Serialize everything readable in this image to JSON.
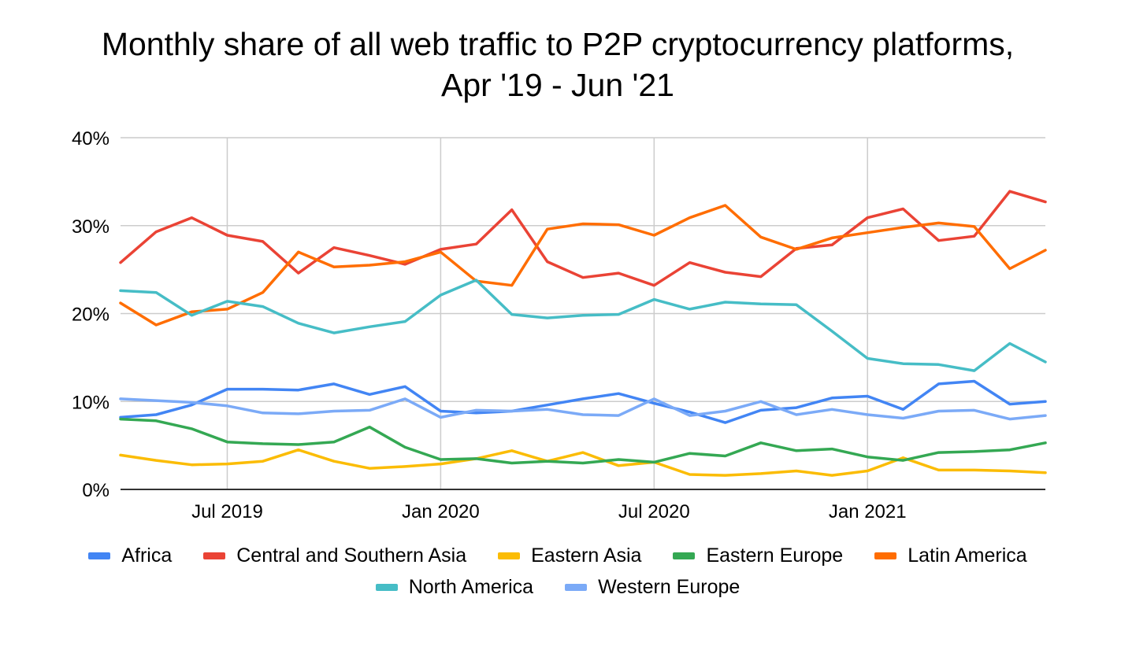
{
  "chart_data": {
    "type": "line",
    "title_line1": "Monthly share of all web traffic to P2P cryptocurrency platforms,",
    "title_line2": "Apr '19 - Jun '21",
    "xlabel": "",
    "ylabel": "",
    "ylim": [
      0,
      40
    ],
    "yticks": [
      "0%",
      "10%",
      "20%",
      "30%",
      "40%"
    ],
    "xticks": [
      {
        "index": 3,
        "label": "Jul 2019"
      },
      {
        "index": 9,
        "label": "Jan 2020"
      },
      {
        "index": 15,
        "label": "Jul 2020"
      },
      {
        "index": 21,
        "label": "Jan 2021"
      }
    ],
    "x": [
      "Apr 2019",
      "May 2019",
      "Jun 2019",
      "Jul 2019",
      "Aug 2019",
      "Sep 2019",
      "Oct 2019",
      "Nov 2019",
      "Dec 2019",
      "Jan 2020",
      "Feb 2020",
      "Mar 2020",
      "Apr 2020",
      "May 2020",
      "Jun 2020",
      "Jul 2020",
      "Aug 2020",
      "Sep 2020",
      "Oct 2020",
      "Nov 2020",
      "Dec 2020",
      "Jan 2021",
      "Feb 2021",
      "Mar 2021",
      "Apr 2021",
      "May 2021",
      "Jun 2021"
    ],
    "grid": true,
    "legend_position": "bottom",
    "series": [
      {
        "name": "Africa",
        "color": "#4285f4",
        "values": [
          8.2,
          8.5,
          9.6,
          11.4,
          11.4,
          11.3,
          12.0,
          10.8,
          11.7,
          8.9,
          8.7,
          8.9,
          9.6,
          10.3,
          10.9,
          9.8,
          8.8,
          7.6,
          9.0,
          9.3,
          10.4,
          10.6,
          9.1,
          12.0,
          12.3,
          9.7,
          10.0
        ]
      },
      {
        "name": "Central and Southern Asia",
        "color": "#ea4335",
        "values": [
          25.8,
          29.3,
          30.9,
          28.9,
          28.2,
          24.6,
          27.5,
          26.6,
          25.6,
          27.3,
          27.9,
          31.8,
          25.9,
          24.1,
          24.6,
          23.2,
          25.8,
          24.7,
          24.2,
          27.4,
          27.8,
          30.9,
          31.9,
          28.3,
          28.8,
          33.9,
          32.7
        ]
      },
      {
        "name": "Eastern Asia",
        "color": "#fbbc04",
        "values": [
          3.9,
          3.3,
          2.8,
          2.9,
          3.2,
          4.5,
          3.2,
          2.4,
          2.6,
          2.9,
          3.5,
          4.4,
          3.2,
          4.2,
          2.7,
          3.1,
          1.7,
          1.6,
          1.8,
          2.1,
          1.6,
          2.1,
          3.6,
          2.2,
          2.2,
          2.1,
          1.9
        ]
      },
      {
        "name": "Eastern Europe",
        "color": "#34a853",
        "values": [
          8.0,
          7.8,
          6.9,
          5.4,
          5.2,
          5.1,
          5.4,
          7.1,
          4.8,
          3.4,
          3.5,
          3.0,
          3.2,
          3.0,
          3.4,
          3.1,
          4.1,
          3.8,
          5.3,
          4.4,
          4.6,
          3.7,
          3.3,
          4.2,
          4.3,
          4.5,
          5.3
        ]
      },
      {
        "name": "Latin America",
        "color": "#ff6d01",
        "values": [
          21.2,
          18.7,
          20.2,
          20.5,
          22.4,
          27.0,
          25.3,
          25.5,
          25.9,
          27.0,
          23.7,
          23.2,
          29.6,
          30.2,
          30.1,
          28.9,
          30.9,
          32.3,
          28.7,
          27.3,
          28.6,
          29.2,
          29.8,
          30.3,
          29.9,
          25.1,
          27.2
        ]
      },
      {
        "name": "North America",
        "color": "#46bdc6",
        "values": [
          22.6,
          22.4,
          19.8,
          21.4,
          20.8,
          18.9,
          17.8,
          18.5,
          19.1,
          22.1,
          23.8,
          19.9,
          19.5,
          19.8,
          19.9,
          21.6,
          20.5,
          21.3,
          21.1,
          21.0,
          18.0,
          14.9,
          14.3,
          14.2,
          13.5,
          16.6,
          14.5
        ]
      },
      {
        "name": "Western Europe",
        "color": "#7baaf7",
        "values": [
          10.3,
          10.1,
          9.9,
          9.5,
          8.7,
          8.6,
          8.9,
          9.0,
          10.3,
          8.2,
          9.0,
          8.9,
          9.1,
          8.5,
          8.4,
          10.3,
          8.4,
          8.9,
          10.0,
          8.5,
          9.1,
          8.5,
          8.1,
          8.9,
          9.0,
          8.0,
          8.4
        ]
      }
    ]
  }
}
